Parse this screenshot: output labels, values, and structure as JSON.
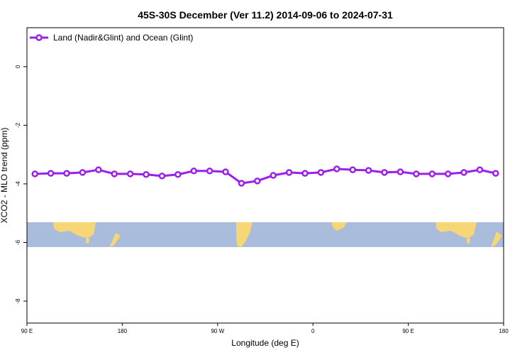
{
  "chart_data": {
    "type": "line",
    "title": "45S-30S December (Ver 11.2)   2014-09-06 to 2024-07-31",
    "xlabel": "Longitude (deg E)",
    "ylabel": "XCO2 - MLO trend (ppm)",
    "xlim": [
      90,
      540
    ],
    "ylim": [
      -8.75,
      1.33
    ],
    "xticks": [
      {
        "value": 90,
        "label": "90 E"
      },
      {
        "value": 180,
        "label": "180"
      },
      {
        "value": 270,
        "label": "90 W"
      },
      {
        "value": 360,
        "label": "0"
      },
      {
        "value": 450,
        "label": "90 E"
      },
      {
        "value": 540,
        "label": "180"
      }
    ],
    "yticks": [
      0,
      -2,
      -4,
      -6,
      -8
    ],
    "legend_position": "upper left",
    "x": [
      97.5,
      112.5,
      127.5,
      142.5,
      157.5,
      172.5,
      187.5,
      202.5,
      217.5,
      232.5,
      247.5,
      262.5,
      277.5,
      292.5,
      307.5,
      322.5,
      337.5,
      352.5,
      367.5,
      382.5,
      397.5,
      412.5,
      427.5,
      442.5,
      457.5,
      472.5,
      487.5,
      502.5,
      517.5,
      532.5
    ],
    "series": [
      {
        "name": "Land (Nadir&Glint) and Ocean (Glint)",
        "color": "#9b1fe8",
        "values": [
          -3.66,
          -3.64,
          -3.64,
          -3.61,
          -3.52,
          -3.66,
          -3.66,
          -3.68,
          -3.73,
          -3.68,
          -3.56,
          -3.56,
          -3.59,
          -3.98,
          -3.9,
          -3.71,
          -3.61,
          -3.64,
          -3.61,
          -3.49,
          -3.52,
          -3.54,
          -3.61,
          -3.59,
          -3.66,
          -3.66,
          -3.66,
          -3.61,
          -3.52,
          -3.64
        ]
      }
    ]
  }
}
